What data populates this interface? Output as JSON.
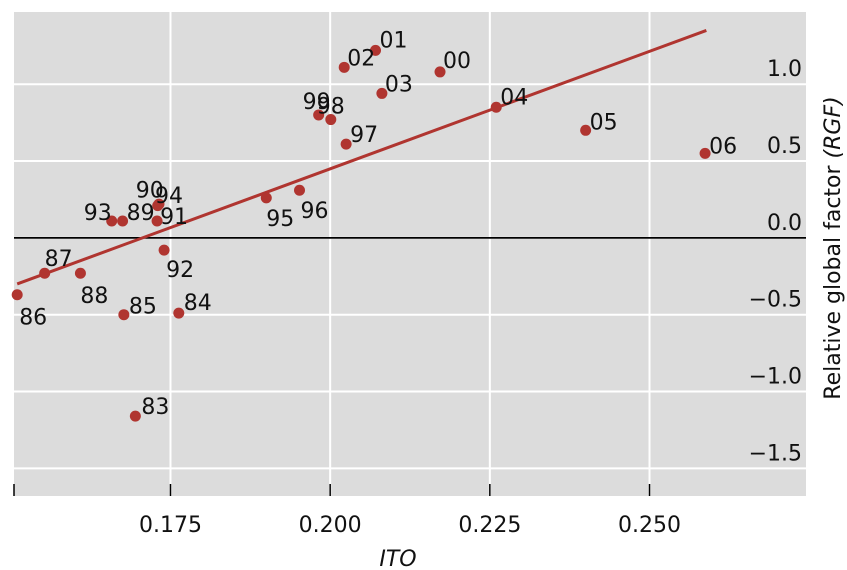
{
  "chart_data": {
    "type": "scatter",
    "xlabel": "ITO",
    "ylabel_prefix": "Relative global factor ",
    "ylabel_var": "(RGF)",
    "xlim": [
      0.1505,
      0.2745
    ],
    "ylim": [
      -1.68,
      1.47
    ],
    "x_ticks": [
      0.175,
      0.2,
      0.225,
      0.25
    ],
    "x_tick_labels": [
      "0.175",
      "0.200",
      "0.225",
      "0.250"
    ],
    "y_ticks": [
      1.0,
      0.5,
      0.0,
      -0.5,
      -1.0,
      -1.5
    ],
    "y_tick_labels": [
      "1.0",
      "0.5",
      "0.0",
      "−0.5",
      "−1.0",
      "−1.5"
    ],
    "grid": true,
    "background": "#dcdcdc",
    "grid_color": "#ffffff",
    "marker_color": "#b03530",
    "line_color": "#b03530",
    "zero_line": 0.0,
    "fit_line": {
      "x": [
        0.151,
        0.2589
      ],
      "y": [
        -0.3,
        1.35
      ]
    },
    "points": [
      {
        "label": "83",
        "x": 0.1695,
        "y": -1.16
      },
      {
        "label": "84",
        "x": 0.1763,
        "y": -0.49
      },
      {
        "label": "85",
        "x": 0.1677,
        "y": -0.5
      },
      {
        "label": "86",
        "x": 0.151,
        "y": -0.37
      },
      {
        "label": "87",
        "x": 0.1553,
        "y": -0.23
      },
      {
        "label": "88",
        "x": 0.1609,
        "y": -0.23
      },
      {
        "label": "89",
        "x": 0.1675,
        "y": 0.11
      },
      {
        "label": "90",
        "x": 0.173,
        "y": 0.21
      },
      {
        "label": "91",
        "x": 0.1729,
        "y": 0.11
      },
      {
        "label": "92",
        "x": 0.174,
        "y": -0.08
      },
      {
        "label": "93",
        "x": 0.1658,
        "y": 0.11
      },
      {
        "label": "94",
        "x": 0.1732,
        "y": 0.22
      },
      {
        "label": "95",
        "x": 0.19,
        "y": 0.26
      },
      {
        "label": "96",
        "x": 0.1952,
        "y": 0.31
      },
      {
        "label": "97",
        "x": 0.2025,
        "y": 0.61
      },
      {
        "label": "98",
        "x": 0.2001,
        "y": 0.77
      },
      {
        "label": "99",
        "x": 0.1982,
        "y": 0.8
      },
      {
        "label": "00",
        "x": 0.2172,
        "y": 1.08
      },
      {
        "label": "01",
        "x": 0.2071,
        "y": 1.22
      },
      {
        "label": "02",
        "x": 0.2022,
        "y": 1.11
      },
      {
        "label": "03",
        "x": 0.2081,
        "y": 0.94
      },
      {
        "label": "04",
        "x": 0.226,
        "y": 0.85
      },
      {
        "label": "05",
        "x": 0.24,
        "y": 0.7
      },
      {
        "label": "06",
        "x": 0.2587,
        "y": 0.55
      }
    ]
  }
}
